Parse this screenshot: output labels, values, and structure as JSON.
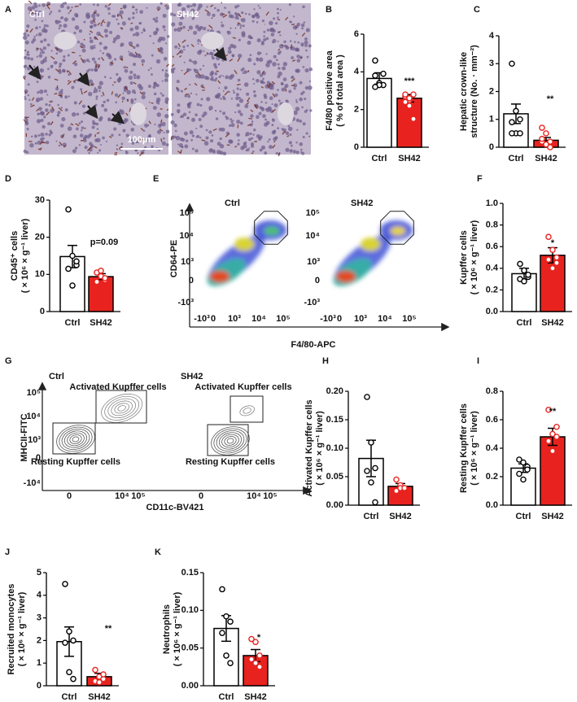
{
  "chart_data": [
    {
      "type": "micrograph",
      "panel": "A",
      "labels": [
        "Ctrl",
        "SH42"
      ],
      "scale_bar": "100μm"
    },
    {
      "type": "bar",
      "panel": "B",
      "ylabel": [
        "F4/80 positive area",
        "( % of total area )"
      ],
      "categories": [
        "Ctrl",
        "SH42"
      ],
      "values": [
        3.65,
        2.6
      ],
      "errors": [
        0.3,
        0.2
      ],
      "points": [
        [
          4.6,
          3.4,
          3.3,
          3.8,
          3.3,
          3.9,
          3.2
        ],
        [
          2.7,
          2.5,
          2.8,
          2.4,
          2.2,
          1.5,
          2.8,
          2.6
        ]
      ],
      "colors": [
        "#ffffff",
        "#e8231f"
      ],
      "ylim": [
        0,
        6
      ],
      "yticks": [
        0,
        2,
        4,
        6
      ],
      "annotation": "***"
    },
    {
      "type": "bar",
      "panel": "C",
      "ylabel": [
        "Hepatic crown-like",
        "structure (No. · mm⁻²)"
      ],
      "categories": [
        "Ctrl",
        "SH42"
      ],
      "values": [
        1.2,
        0.25
      ],
      "errors": [
        0.35,
        0.1
      ],
      "points": [
        [
          3.0,
          1.3,
          1.0,
          0.9,
          0.5,
          0.5,
          0.5
        ],
        [
          0.7,
          0.5,
          0.2,
          0.2,
          0.1,
          0.0,
          0.3,
          0.1
        ]
      ],
      "colors": [
        "#ffffff",
        "#e8231f"
      ],
      "ylim": [
        0,
        4
      ],
      "yticks": [
        0,
        1,
        2,
        3,
        4
      ],
      "annotation": "**"
    },
    {
      "type": "bar",
      "panel": "D",
      "ylabel": [
        "CD45⁺ cells",
        "( × 10⁶ × g⁻¹ liver)"
      ],
      "categories": [
        "Ctrl",
        "SH42"
      ],
      "values": [
        14.8,
        9.4
      ],
      "errors": [
        3,
        0.8
      ],
      "points": [
        [
          27.5,
          15,
          12.5,
          11.5,
          7,
          13.5
        ],
        [
          10.5,
          9.5,
          8.5,
          8,
          11,
          9
        ]
      ],
      "colors": [
        "#ffffff",
        "#e8231f"
      ],
      "ylim": [
        0,
        30
      ],
      "yticks": [
        0,
        10,
        20,
        30
      ],
      "annotation": "p=0.09"
    },
    {
      "type": "flow",
      "panel": "E",
      "plots": [
        "Ctrl",
        "SH42"
      ],
      "ylabel": "CD64-PE",
      "xlabel": "F4/80-APC",
      "ytick_labels": [
        "10⁵",
        "10⁴",
        "10³",
        "0",
        "-10³"
      ],
      "xtick_labels": [
        "-10³",
        "0",
        "10³",
        "10⁴",
        "10⁵"
      ]
    },
    {
      "type": "bar",
      "panel": "F",
      "ylabel": [
        "Kupffer cells",
        "( × 10⁶ × g⁻¹ liver)"
      ],
      "categories": [
        "Ctrl",
        "SH42"
      ],
      "values": [
        0.35,
        0.52
      ],
      "errors": [
        0.05,
        0.07
      ],
      "points": [
        [
          0.44,
          0.38,
          0.32,
          0.3,
          0.28,
          0.34
        ],
        [
          0.69,
          0.57,
          0.5,
          0.48,
          0.4,
          0.45
        ]
      ],
      "colors": [
        "#ffffff",
        "#e8231f"
      ],
      "ylim": [
        0,
        1
      ],
      "yticks": [
        {
          "value": 0,
          "label": "0.0"
        },
        0.2,
        0.4,
        0.6,
        0.8,
        {
          "value": 1,
          "label": "1.0"
        }
      ],
      "annotation": "*"
    },
    {
      "type": "contour",
      "panel": "G",
      "plots": [
        "Ctrl",
        "SH42"
      ],
      "ylabel": "MHCII-FITC",
      "xlabel": "CD11c-BV421",
      "gates": [
        "Activated Kupffer cells",
        "Resting Kupffer cells"
      ],
      "ytick_labels": [
        "10⁵",
        "10⁴",
        "10³",
        "0",
        "-10⁴"
      ],
      "xtick_labels": [
        "0",
        "10⁴",
        "10⁵"
      ]
    },
    {
      "type": "bar",
      "panel": "H",
      "ylabel": [
        "Activated Kupffer cells",
        "( × 10⁶ × g⁻¹ liver)"
      ],
      "categories": [
        "Ctrl",
        "SH42"
      ],
      "values": [
        0.082,
        0.033
      ],
      "errors": [
        0.032,
        0.005
      ],
      "points": [
        [
          0.19,
          0.11,
          0.065,
          0.06,
          0.04,
          0.005
        ],
        [
          0.045,
          0.035,
          0.03,
          0.025,
          0.03,
          0.03
        ]
      ],
      "colors": [
        "#ffffff",
        "#e8231f"
      ],
      "ylim": [
        0,
        0.2
      ],
      "yticks": [
        {
          "value": 0,
          "label": "0.00"
        },
        0.05,
        {
          "value": 0.1,
          "label": "0.10"
        },
        0.15,
        {
          "value": 0.2,
          "label": "0.20"
        }
      ]
    },
    {
      "type": "bar",
      "panel": "I",
      "ylabel": [
        "Resting Kupffer cells",
        "( × 10⁶ × g⁻¹ liver)"
      ],
      "categories": [
        "Ctrl",
        "SH42"
      ],
      "values": [
        0.26,
        0.48
      ],
      "errors": [
        0.03,
        0.06
      ],
      "points": [
        [
          0.32,
          0.3,
          0.27,
          0.22,
          0.18,
          0.25
        ],
        [
          0.67,
          0.5,
          0.48,
          0.45,
          0.38,
          0.55
        ]
      ],
      "colors": [
        "#ffffff",
        "#e8231f"
      ],
      "ylim": [
        0,
        0.8
      ],
      "yticks": [
        {
          "value": 0,
          "label": "0.0"
        },
        0.2,
        0.4,
        0.6,
        0.8
      ],
      "annotation": "**"
    },
    {
      "type": "bar",
      "panel": "J",
      "ylabel": [
        "Recruited monocytes",
        "( × 10⁶ × g⁻¹ liver)"
      ],
      "categories": [
        "Ctrl",
        "SH42"
      ],
      "values": [
        1.95,
        0.4
      ],
      "errors": [
        0.65,
        0.15
      ],
      "points": [
        [
          4.5,
          2.4,
          2,
          1.9,
          0.6,
          0.3
        ],
        [
          0.7,
          0.4,
          0.3,
          0.2,
          0.15,
          0.5
        ]
      ],
      "colors": [
        "#ffffff",
        "#e8231f"
      ],
      "ylim": [
        0,
        5
      ],
      "yticks": [
        0,
        1,
        2,
        3,
        4,
        5
      ],
      "annotation": "**"
    },
    {
      "type": "bar",
      "panel": "K",
      "ylabel": [
        "Neutrophils",
        "( × 10⁶ × g⁻¹ liver)"
      ],
      "categories": [
        "Ctrl",
        "SH42"
      ],
      "values": [
        0.076,
        0.04
      ],
      "errors": [
        0.017,
        0.008
      ],
      "points": [
        [
          0.128,
          0.092,
          0.085,
          0.07,
          0.04,
          0.03
        ],
        [
          0.062,
          0.058,
          0.04,
          0.035,
          0.03,
          0.025
        ]
      ],
      "colors": [
        "#ffffff",
        "#e8231f"
      ],
      "ylim": [
        0,
        0.15
      ],
      "yticks": [
        {
          "value": 0,
          "label": "0.00"
        },
        0.05,
        {
          "value": 0.1,
          "label": "0.10"
        },
        0.15
      ],
      "annotation": "*"
    }
  ]
}
